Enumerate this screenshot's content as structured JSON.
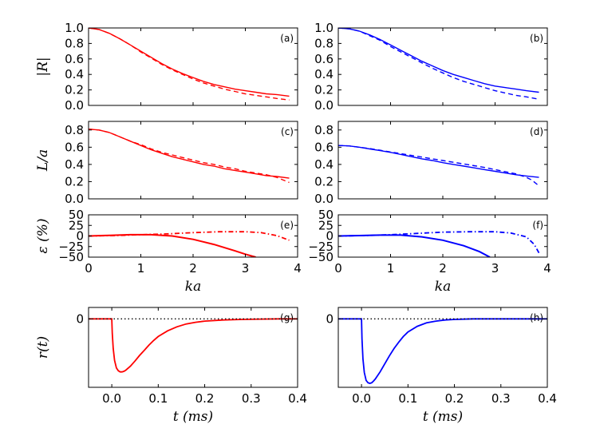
{
  "chart_data": [
    {
      "id": "a",
      "type": "line",
      "panel_label": "(a)",
      "ylabel": "|R|",
      "xlabel": "",
      "xlim": [
        0,
        4
      ],
      "ylim": [
        0,
        1.0
      ],
      "xticks": [
        0,
        1,
        2,
        3,
        4
      ],
      "show_xticklabels": false,
      "yticks": [
        0.0,
        0.2,
        0.4,
        0.6,
        0.8,
        1.0
      ],
      "ytick_labels": [
        "0.0",
        "0.2",
        "0.4",
        "0.6",
        "0.8",
        "1.0"
      ],
      "grid": false,
      "series": [
        {
          "style": "solid",
          "color": "#ff0000",
          "x": [
            0,
            0.2,
            0.4,
            0.6,
            0.8,
            1.0,
            1.2,
            1.4,
            1.6,
            1.8,
            2.0,
            2.2,
            2.4,
            2.6,
            2.8,
            3.0,
            3.2,
            3.4,
            3.6,
            3.84
          ],
          "y": [
            1.0,
            0.98,
            0.93,
            0.86,
            0.78,
            0.7,
            0.62,
            0.54,
            0.47,
            0.41,
            0.36,
            0.31,
            0.27,
            0.24,
            0.21,
            0.19,
            0.17,
            0.15,
            0.14,
            0.12
          ]
        },
        {
          "style": "dashed",
          "color": "#ff0000",
          "x": [
            0,
            0.2,
            0.4,
            0.6,
            0.8,
            1.0,
            1.2,
            1.4,
            1.6,
            1.8,
            2.0,
            2.2,
            2.4,
            2.6,
            2.8,
            3.0,
            3.2,
            3.4,
            3.6,
            3.84
          ],
          "y": [
            1.0,
            0.98,
            0.93,
            0.86,
            0.78,
            0.69,
            0.61,
            0.53,
            0.46,
            0.4,
            0.34,
            0.29,
            0.25,
            0.21,
            0.18,
            0.15,
            0.13,
            0.11,
            0.09,
            0.07
          ]
        }
      ]
    },
    {
      "id": "b",
      "type": "line",
      "panel_label": "(b)",
      "ylabel": "",
      "xlabel": "",
      "xlim": [
        0,
        4
      ],
      "ylim": [
        0,
        1.0
      ],
      "xticks": [
        0,
        1,
        2,
        3,
        4
      ],
      "show_xticklabels": false,
      "yticks": [
        0.0,
        0.2,
        0.4,
        0.6,
        0.8,
        1.0
      ],
      "ytick_labels": [
        "0.0",
        "0.2",
        "0.4",
        "0.6",
        "0.8",
        "1.0"
      ],
      "grid": false,
      "series": [
        {
          "style": "solid",
          "color": "#0000ff",
          "x": [
            0,
            0.2,
            0.4,
            0.6,
            0.8,
            1.0,
            1.2,
            1.4,
            1.6,
            1.8,
            2.0,
            2.2,
            2.4,
            2.6,
            2.8,
            3.0,
            3.2,
            3.4,
            3.6,
            3.84
          ],
          "y": [
            1.0,
            0.99,
            0.96,
            0.91,
            0.85,
            0.78,
            0.71,
            0.64,
            0.57,
            0.51,
            0.45,
            0.4,
            0.36,
            0.32,
            0.28,
            0.25,
            0.23,
            0.21,
            0.19,
            0.17
          ]
        },
        {
          "style": "dashed",
          "color": "#0000ff",
          "x": [
            0,
            0.2,
            0.4,
            0.6,
            0.8,
            1.0,
            1.2,
            1.4,
            1.6,
            1.8,
            2.0,
            2.2,
            2.4,
            2.6,
            2.8,
            3.0,
            3.2,
            3.4,
            3.6,
            3.84
          ],
          "y": [
            1.0,
            0.99,
            0.96,
            0.9,
            0.84,
            0.76,
            0.69,
            0.62,
            0.55,
            0.48,
            0.42,
            0.36,
            0.31,
            0.27,
            0.23,
            0.19,
            0.16,
            0.13,
            0.11,
            0.08
          ]
        }
      ]
    },
    {
      "id": "c",
      "type": "line",
      "panel_label": "(c)",
      "ylabel": "L/a",
      "xlabel": "",
      "xlim": [
        0,
        4
      ],
      "ylim": [
        0,
        0.9
      ],
      "xticks": [
        0,
        1,
        2,
        3,
        4
      ],
      "show_xticklabels": false,
      "yticks": [
        0.0,
        0.2,
        0.4,
        0.6,
        0.8
      ],
      "ytick_labels": [
        "0.0",
        "0.2",
        "0.4",
        "0.6",
        "0.8"
      ],
      "grid": false,
      "series": [
        {
          "style": "solid",
          "color": "#ff0000",
          "x": [
            0,
            0.2,
            0.4,
            0.6,
            0.8,
            1.0,
            1.2,
            1.4,
            1.6,
            1.8,
            2.0,
            2.2,
            2.4,
            2.6,
            2.8,
            3.0,
            3.2,
            3.4,
            3.6,
            3.84
          ],
          "y": [
            0.81,
            0.8,
            0.77,
            0.72,
            0.67,
            0.62,
            0.57,
            0.53,
            0.49,
            0.46,
            0.43,
            0.4,
            0.38,
            0.35,
            0.33,
            0.31,
            0.29,
            0.27,
            0.26,
            0.24
          ]
        },
        {
          "style": "dashed",
          "color": "#ff0000",
          "x": [
            0,
            0.2,
            0.4,
            0.6,
            0.8,
            1.0,
            1.2,
            1.4,
            1.6,
            1.8,
            2.0,
            2.2,
            2.4,
            2.6,
            2.8,
            3.0,
            3.2,
            3.4,
            3.6,
            3.84
          ],
          "y": [
            0.81,
            0.8,
            0.77,
            0.72,
            0.67,
            0.63,
            0.58,
            0.54,
            0.51,
            0.48,
            0.45,
            0.42,
            0.4,
            0.37,
            0.35,
            0.32,
            0.3,
            0.28,
            0.25,
            0.19
          ]
        }
      ]
    },
    {
      "id": "d",
      "type": "line",
      "panel_label": "(d)",
      "ylabel": "",
      "xlabel": "",
      "xlim": [
        0,
        4
      ],
      "ylim": [
        0,
        0.9
      ],
      "xticks": [
        0,
        1,
        2,
        3,
        4
      ],
      "show_xticklabels": false,
      "yticks": [
        0.0,
        0.2,
        0.4,
        0.6,
        0.8
      ],
      "ytick_labels": [
        "0.0",
        "0.2",
        "0.4",
        "0.6",
        "0.8"
      ],
      "grid": false,
      "series": [
        {
          "style": "solid",
          "color": "#0000ff",
          "x": [
            0,
            0.2,
            0.4,
            0.6,
            0.8,
            1.0,
            1.2,
            1.4,
            1.6,
            1.8,
            2.0,
            2.2,
            2.4,
            2.6,
            2.8,
            3.0,
            3.2,
            3.4,
            3.6,
            3.84
          ],
          "y": [
            0.62,
            0.615,
            0.6,
            0.58,
            0.56,
            0.54,
            0.515,
            0.49,
            0.465,
            0.445,
            0.42,
            0.4,
            0.38,
            0.36,
            0.34,
            0.32,
            0.3,
            0.28,
            0.265,
            0.25
          ]
        },
        {
          "style": "dashed",
          "color": "#0000ff",
          "x": [
            0,
            0.2,
            0.4,
            0.6,
            0.8,
            1.0,
            1.2,
            1.4,
            1.6,
            1.8,
            2.0,
            2.2,
            2.4,
            2.6,
            2.8,
            3.0,
            3.2,
            3.4,
            3.6,
            3.7,
            3.84
          ],
          "y": [
            0.62,
            0.615,
            0.6,
            0.585,
            0.565,
            0.545,
            0.525,
            0.505,
            0.485,
            0.465,
            0.445,
            0.425,
            0.405,
            0.385,
            0.365,
            0.34,
            0.315,
            0.29,
            0.25,
            0.22,
            0.15
          ]
        }
      ]
    },
    {
      "id": "e",
      "type": "line",
      "panel_label": "(e)",
      "ylabel": "ε (%)",
      "xlabel": "ka",
      "xlim": [
        0,
        4
      ],
      "ylim": [
        -50,
        50
      ],
      "xticks": [
        0,
        1,
        2,
        3,
        4
      ],
      "xtick_labels": [
        "0",
        "1",
        "2",
        "3",
        "4"
      ],
      "show_xticklabels": true,
      "yticks": [
        -50,
        -25,
        0,
        25,
        50
      ],
      "ytick_labels": [
        "−50",
        "−25",
        "0",
        "25",
        "50"
      ],
      "grid": false,
      "series": [
        {
          "style": "solid",
          "color": "#ff0000",
          "x": [
            0,
            0.4,
            0.8,
            1.2,
            1.6,
            2.0,
            2.4,
            2.8,
            3.0,
            3.2
          ],
          "y": [
            0,
            1.5,
            3,
            3,
            0,
            -8,
            -20,
            -35,
            -43,
            -50
          ]
        },
        {
          "style": "dashdot",
          "color": "#ff0000",
          "x": [
            0,
            0.5,
            1.0,
            1.5,
            2.0,
            2.5,
            3.0,
            3.3,
            3.6,
            3.84
          ],
          "y": [
            0,
            1,
            3,
            5,
            8,
            10,
            10,
            8,
            1,
            -10
          ]
        }
      ]
    },
    {
      "id": "f",
      "type": "line",
      "panel_label": "(f)",
      "ylabel": "",
      "xlabel": "ka",
      "xlim": [
        0,
        4
      ],
      "ylim": [
        -50,
        50
      ],
      "xticks": [
        0,
        1,
        2,
        3,
        4
      ],
      "xtick_labels": [
        "0",
        "1",
        "2",
        "3",
        "4"
      ],
      "show_xticklabels": true,
      "yticks": [
        -50,
        -25,
        0,
        25,
        50
      ],
      "ytick_labels": [
        "−50",
        "−25",
        "0",
        "25",
        "50"
      ],
      "grid": false,
      "series": [
        {
          "style": "solid",
          "color": "#0000ff",
          "x": [
            0,
            0.4,
            0.8,
            1.2,
            1.6,
            2.0,
            2.4,
            2.7,
            2.9
          ],
          "y": [
            0,
            1,
            2,
            2,
            -2,
            -10,
            -23,
            -37,
            -50
          ]
        },
        {
          "style": "dashdot",
          "color": "#0000ff",
          "x": [
            0,
            0.5,
            1.0,
            1.5,
            2.0,
            2.5,
            3.0,
            3.3,
            3.6,
            3.75,
            3.84
          ],
          "y": [
            0,
            1,
            3,
            6,
            9,
            10,
            10,
            7,
            -2,
            -20,
            -40
          ]
        }
      ]
    },
    {
      "id": "g",
      "type": "line",
      "panel_label": "(g)",
      "ylabel": "r(t)",
      "xlabel": "t (ms)",
      "xlim": [
        -0.05,
        0.4
      ],
      "ylim": [
        -1.2,
        0.2
      ],
      "xticks": [
        0.0,
        0.1,
        0.2,
        0.3,
        0.4
      ],
      "xtick_labels": [
        "0.0",
        "0.1",
        "0.2",
        "0.3",
        "0.4"
      ],
      "show_xticklabels": true,
      "yticks": [
        0
      ],
      "ytick_labels": [
        "0"
      ],
      "grid": false,
      "series": [
        {
          "style": "solid",
          "color": "#ff0000",
          "x": [
            -0.05,
            0.0,
            0.001,
            0.003,
            0.006,
            0.01,
            0.014,
            0.018,
            0.022,
            0.026,
            0.03,
            0.04,
            0.05,
            0.06,
            0.07,
            0.08,
            0.09,
            0.1,
            0.12,
            0.14,
            0.16,
            0.18,
            0.2,
            0.24,
            0.28,
            0.32,
            0.36,
            0.4
          ],
          "y": [
            0,
            0,
            -0.25,
            -0.52,
            -0.73,
            -0.86,
            -0.91,
            -0.93,
            -0.93,
            -0.92,
            -0.9,
            -0.83,
            -0.74,
            -0.64,
            -0.55,
            -0.46,
            -0.38,
            -0.31,
            -0.21,
            -0.14,
            -0.09,
            -0.06,
            -0.04,
            -0.02,
            -0.01,
            -0.005,
            0,
            0
          ]
        },
        {
          "style": "dotted",
          "color": "#000000",
          "x": [
            -0.05,
            0.4
          ],
          "y": [
            0,
            0
          ]
        }
      ]
    },
    {
      "id": "h",
      "type": "line",
      "panel_label": "(h)",
      "ylabel": "",
      "xlabel": "t (ms)",
      "xlim": [
        -0.05,
        0.4
      ],
      "ylim": [
        -1.2,
        0.2
      ],
      "xticks": [
        0.0,
        0.1,
        0.2,
        0.3,
        0.4
      ],
      "xtick_labels": [
        "0.0",
        "0.1",
        "0.2",
        "0.3",
        "0.4"
      ],
      "show_xticklabels": true,
      "yticks": [
        0
      ],
      "ytick_labels": [
        "0"
      ],
      "grid": false,
      "series": [
        {
          "style": "solid",
          "color": "#0000ff",
          "x": [
            -0.05,
            0.0,
            0.001,
            0.003,
            0.006,
            0.01,
            0.014,
            0.018,
            0.022,
            0.026,
            0.03,
            0.04,
            0.05,
            0.06,
            0.07,
            0.08,
            0.09,
            0.1,
            0.12,
            0.14,
            0.16,
            0.18,
            0.2,
            0.24,
            0.28,
            0.32,
            0.36,
            0.4
          ],
          "y": [
            0,
            0,
            -0.35,
            -0.7,
            -0.94,
            -1.08,
            -1.12,
            -1.13,
            -1.12,
            -1.09,
            -1.05,
            -0.93,
            -0.79,
            -0.65,
            -0.52,
            -0.41,
            -0.31,
            -0.23,
            -0.13,
            -0.07,
            -0.04,
            -0.02,
            -0.01,
            0,
            0,
            0,
            0,
            0
          ]
        },
        {
          "style": "dotted",
          "color": "#000000",
          "x": [
            -0.05,
            0.4
          ],
          "y": [
            0,
            0
          ]
        }
      ]
    }
  ]
}
